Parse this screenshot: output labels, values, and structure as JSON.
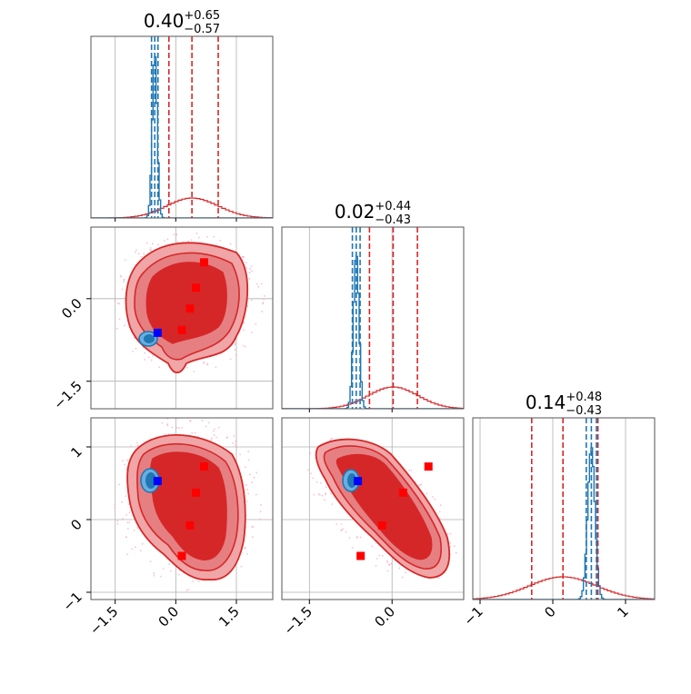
{
  "chart_data": {
    "type": "corner",
    "colors": {
      "red": "#d62728",
      "blue": "#1f77b4",
      "marker_red": "#ff0000",
      "marker_blue": "#0000ff"
    },
    "titles": [
      {
        "base": "0.40",
        "sup": "+0.65",
        "sub": "−0.57"
      },
      {
        "base": "0.02",
        "sup": "+0.44",
        "sub": "−0.43"
      },
      {
        "base": "0.14",
        "sup": "+0.48",
        "sub": "−0.43"
      }
    ],
    "ticks": {
      "p0": [
        "−1.5",
        "0.0",
        "1.5"
      ],
      "p1": [
        "−1.5",
        "0.0"
      ],
      "p2": [
        "−1",
        "0",
        "1"
      ]
    },
    "ranges": {
      "p0": [
        -2.1,
        2.4
      ],
      "p1": [
        -2.0,
        1.3
      ],
      "p2": [
        -1.1,
        1.4
      ]
    },
    "quantile_lines": {
      "p0": {
        "red": [
          -0.17,
          0.4,
          1.05
        ],
        "blue": [
          -0.6,
          -0.52,
          -0.44
        ]
      },
      "p1": {
        "red": [
          -0.41,
          0.02,
          0.46
        ],
        "blue": [
          -0.72,
          -0.65,
          -0.58
        ]
      },
      "p2": {
        "red": [
          -0.29,
          0.14,
          0.62
        ],
        "blue": [
          0.46,
          0.53,
          0.6
        ]
      }
    },
    "markers": {
      "red": [
        {
          "p0": 0.7,
          "p1": 0.66,
          "p2": 0.73
        },
        {
          "p0": 0.5,
          "p1": 0.2,
          "p2": 0.37
        },
        {
          "p0": 0.35,
          "p1": -0.18,
          "p2": -0.08
        },
        {
          "p0": 0.15,
          "p1": -0.57,
          "p2": -0.5
        }
      ],
      "blue": [
        {
          "p0": -0.45,
          "p1": -0.62,
          "p2": 0.53
        }
      ]
    }
  }
}
